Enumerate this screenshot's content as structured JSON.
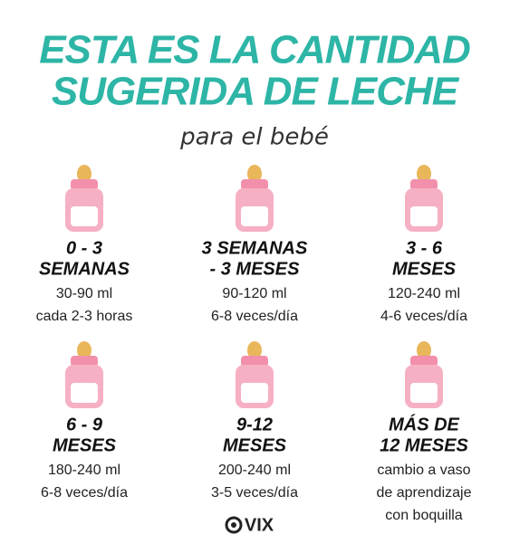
{
  "header": {
    "title_lines": [
      "ESTA ES LA CANTIDAD",
      "SUGERIDA DE LECHE"
    ],
    "subtitle": "para el bebé"
  },
  "items": [
    {
      "heading": [
        "0 - 3",
        "SEMANAS"
      ],
      "details": [
        "30-90 ml",
        "cada 2-3 horas"
      ]
    },
    {
      "heading": [
        "3 SEMANAS",
        "- 3 MESES"
      ],
      "details": [
        "90-120 ml",
        "6-8 veces/día"
      ]
    },
    {
      "heading": [
        "3 - 6",
        "MESES"
      ],
      "details": [
        "120-240 ml",
        "4-6 veces/día"
      ]
    },
    {
      "heading": [
        "6 - 9",
        "MESES"
      ],
      "details": [
        "180-240 ml",
        "6-8 veces/día"
      ]
    },
    {
      "heading": [
        "9-12",
        "MESES"
      ],
      "details": [
        "200-240 ml",
        "3-5 veces/día"
      ]
    },
    {
      "heading": [
        "MÁS DE",
        "12 MESES"
      ],
      "details": [
        "cambio a vaso",
        "de aprendizaje",
        "con boquilla"
      ]
    }
  ],
  "footer": {
    "logo": "VIX"
  }
}
